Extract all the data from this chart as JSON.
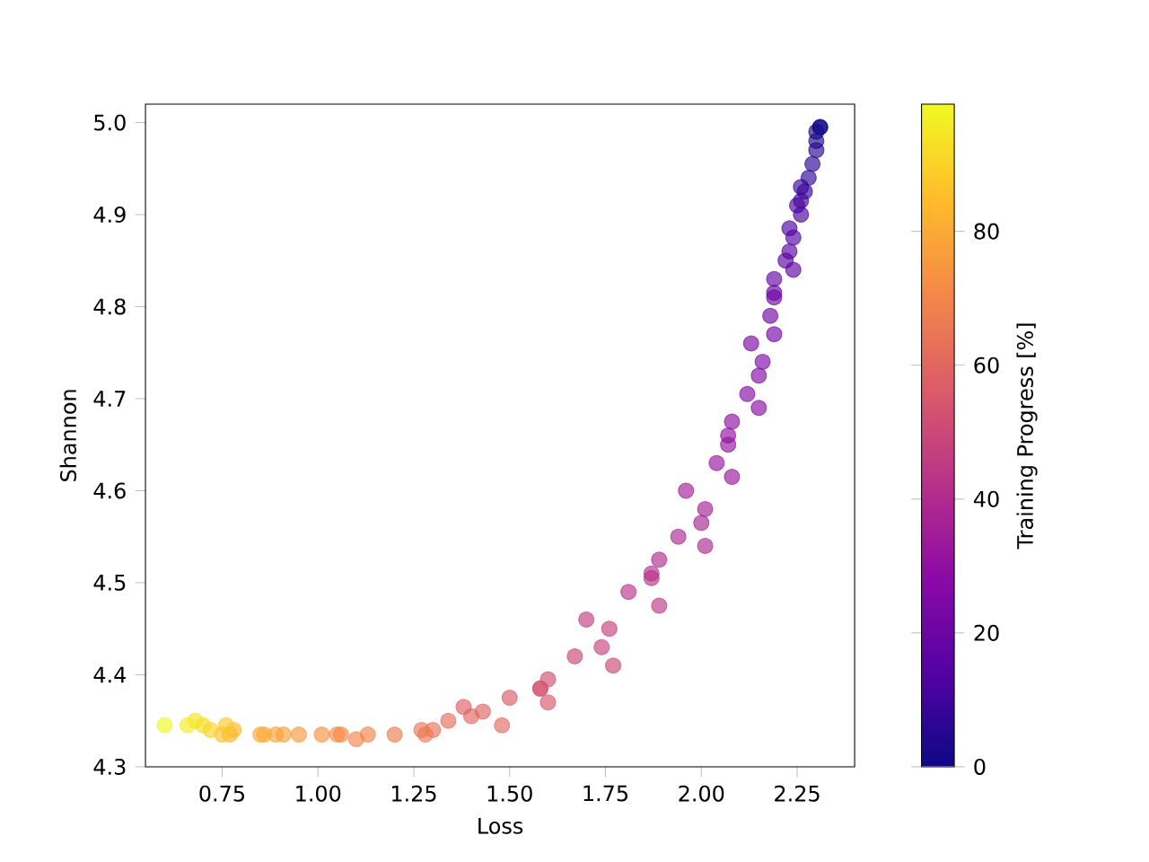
{
  "chart_data": {
    "type": "scatter",
    "xlabel": "Loss",
    "ylabel": "Shannon",
    "clabel": "Training Progress [%]",
    "x": [
      2.31,
      2.31,
      2.3,
      2.3,
      2.3,
      2.29,
      2.28,
      2.27,
      2.26,
      2.26,
      2.26,
      2.25,
      2.23,
      2.24,
      2.23,
      2.22,
      2.24,
      2.19,
      2.19,
      2.19,
      2.18,
      2.19,
      2.13,
      2.16,
      2.15,
      2.12,
      2.15,
      2.08,
      2.07,
      2.07,
      2.04,
      2.08,
      1.96,
      2.01,
      2.0,
      1.94,
      2.01,
      1.89,
      1.87,
      1.87,
      1.81,
      1.89,
      1.7,
      1.76,
      1.74,
      1.67,
      1.77,
      1.6,
      1.58,
      1.58,
      1.6,
      1.5,
      1.38,
      1.43,
      1.4,
      1.48,
      1.34,
      1.3,
      1.27,
      1.28,
      1.2,
      1.13,
      1.1,
      1.06,
      1.05,
      1.01,
      0.95,
      0.91,
      0.89,
      0.86,
      0.85,
      0.77,
      0.78,
      0.75,
      0.76,
      0.72,
      0.7,
      0.68,
      0.66,
      0.6
    ],
    "values": [
      4.995,
      4.995,
      4.99,
      4.98,
      4.97,
      4.955,
      4.94,
      4.925,
      4.93,
      4.915,
      4.9,
      4.91,
      4.885,
      4.875,
      4.86,
      4.85,
      4.84,
      4.83,
      4.815,
      4.81,
      4.79,
      4.77,
      4.76,
      4.74,
      4.725,
      4.705,
      4.69,
      4.675,
      4.66,
      4.65,
      4.63,
      4.615,
      4.6,
      4.58,
      4.565,
      4.55,
      4.54,
      4.525,
      4.51,
      4.505,
      4.49,
      4.475,
      4.46,
      4.45,
      4.43,
      4.42,
      4.41,
      4.395,
      4.385,
      4.385,
      4.37,
      4.375,
      4.365,
      4.36,
      4.355,
      4.345,
      4.35,
      4.34,
      4.34,
      4.335,
      4.335,
      4.335,
      4.33,
      4.335,
      4.335,
      4.335,
      4.335,
      4.335,
      4.335,
      4.335,
      4.335,
      4.335,
      4.34,
      4.335,
      4.345,
      4.34,
      4.345,
      4.35,
      4.345,
      4.345
    ],
    "cvalues": [
      0,
      1,
      2,
      3,
      5,
      6,
      7,
      8,
      9,
      10,
      11,
      12,
      13,
      14,
      15,
      16,
      17,
      18,
      19,
      20,
      21,
      22,
      24,
      25,
      26,
      27,
      28,
      29,
      30,
      31,
      32,
      33,
      35,
      36,
      37,
      38,
      39,
      40,
      41,
      42,
      43,
      44,
      46,
      47,
      48,
      49,
      50,
      52,
      53,
      54,
      55,
      56,
      58,
      59,
      60,
      61,
      62,
      64,
      65,
      66,
      67,
      69,
      70,
      71,
      72,
      73,
      75,
      77,
      78,
      79,
      80,
      82,
      84,
      86,
      88,
      90,
      92,
      94,
      96,
      99
    ],
    "marker": "circle",
    "xlim": [
      0.55,
      2.4
    ],
    "ylim": [
      4.3,
      5.02
    ],
    "xticks": [
      {
        "value": 0.75,
        "label": "0.75"
      },
      {
        "value": 1.0,
        "label": "1.00"
      },
      {
        "value": 1.25,
        "label": "1.25"
      },
      {
        "value": 1.5,
        "label": "1.50"
      },
      {
        "value": 1.75,
        "label": "1.75"
      },
      {
        "value": 2.0,
        "label": "2.00"
      },
      {
        "value": 2.25,
        "label": "2.25"
      }
    ],
    "yticks": [
      4.3,
      4.4,
      4.5,
      4.6,
      4.7,
      4.8,
      4.9,
      {
        "value": 5.0,
        "label": "5.0"
      }
    ],
    "clim": [
      0,
      99
    ],
    "cticks": [
      0,
      20,
      40,
      60,
      80
    ]
  }
}
